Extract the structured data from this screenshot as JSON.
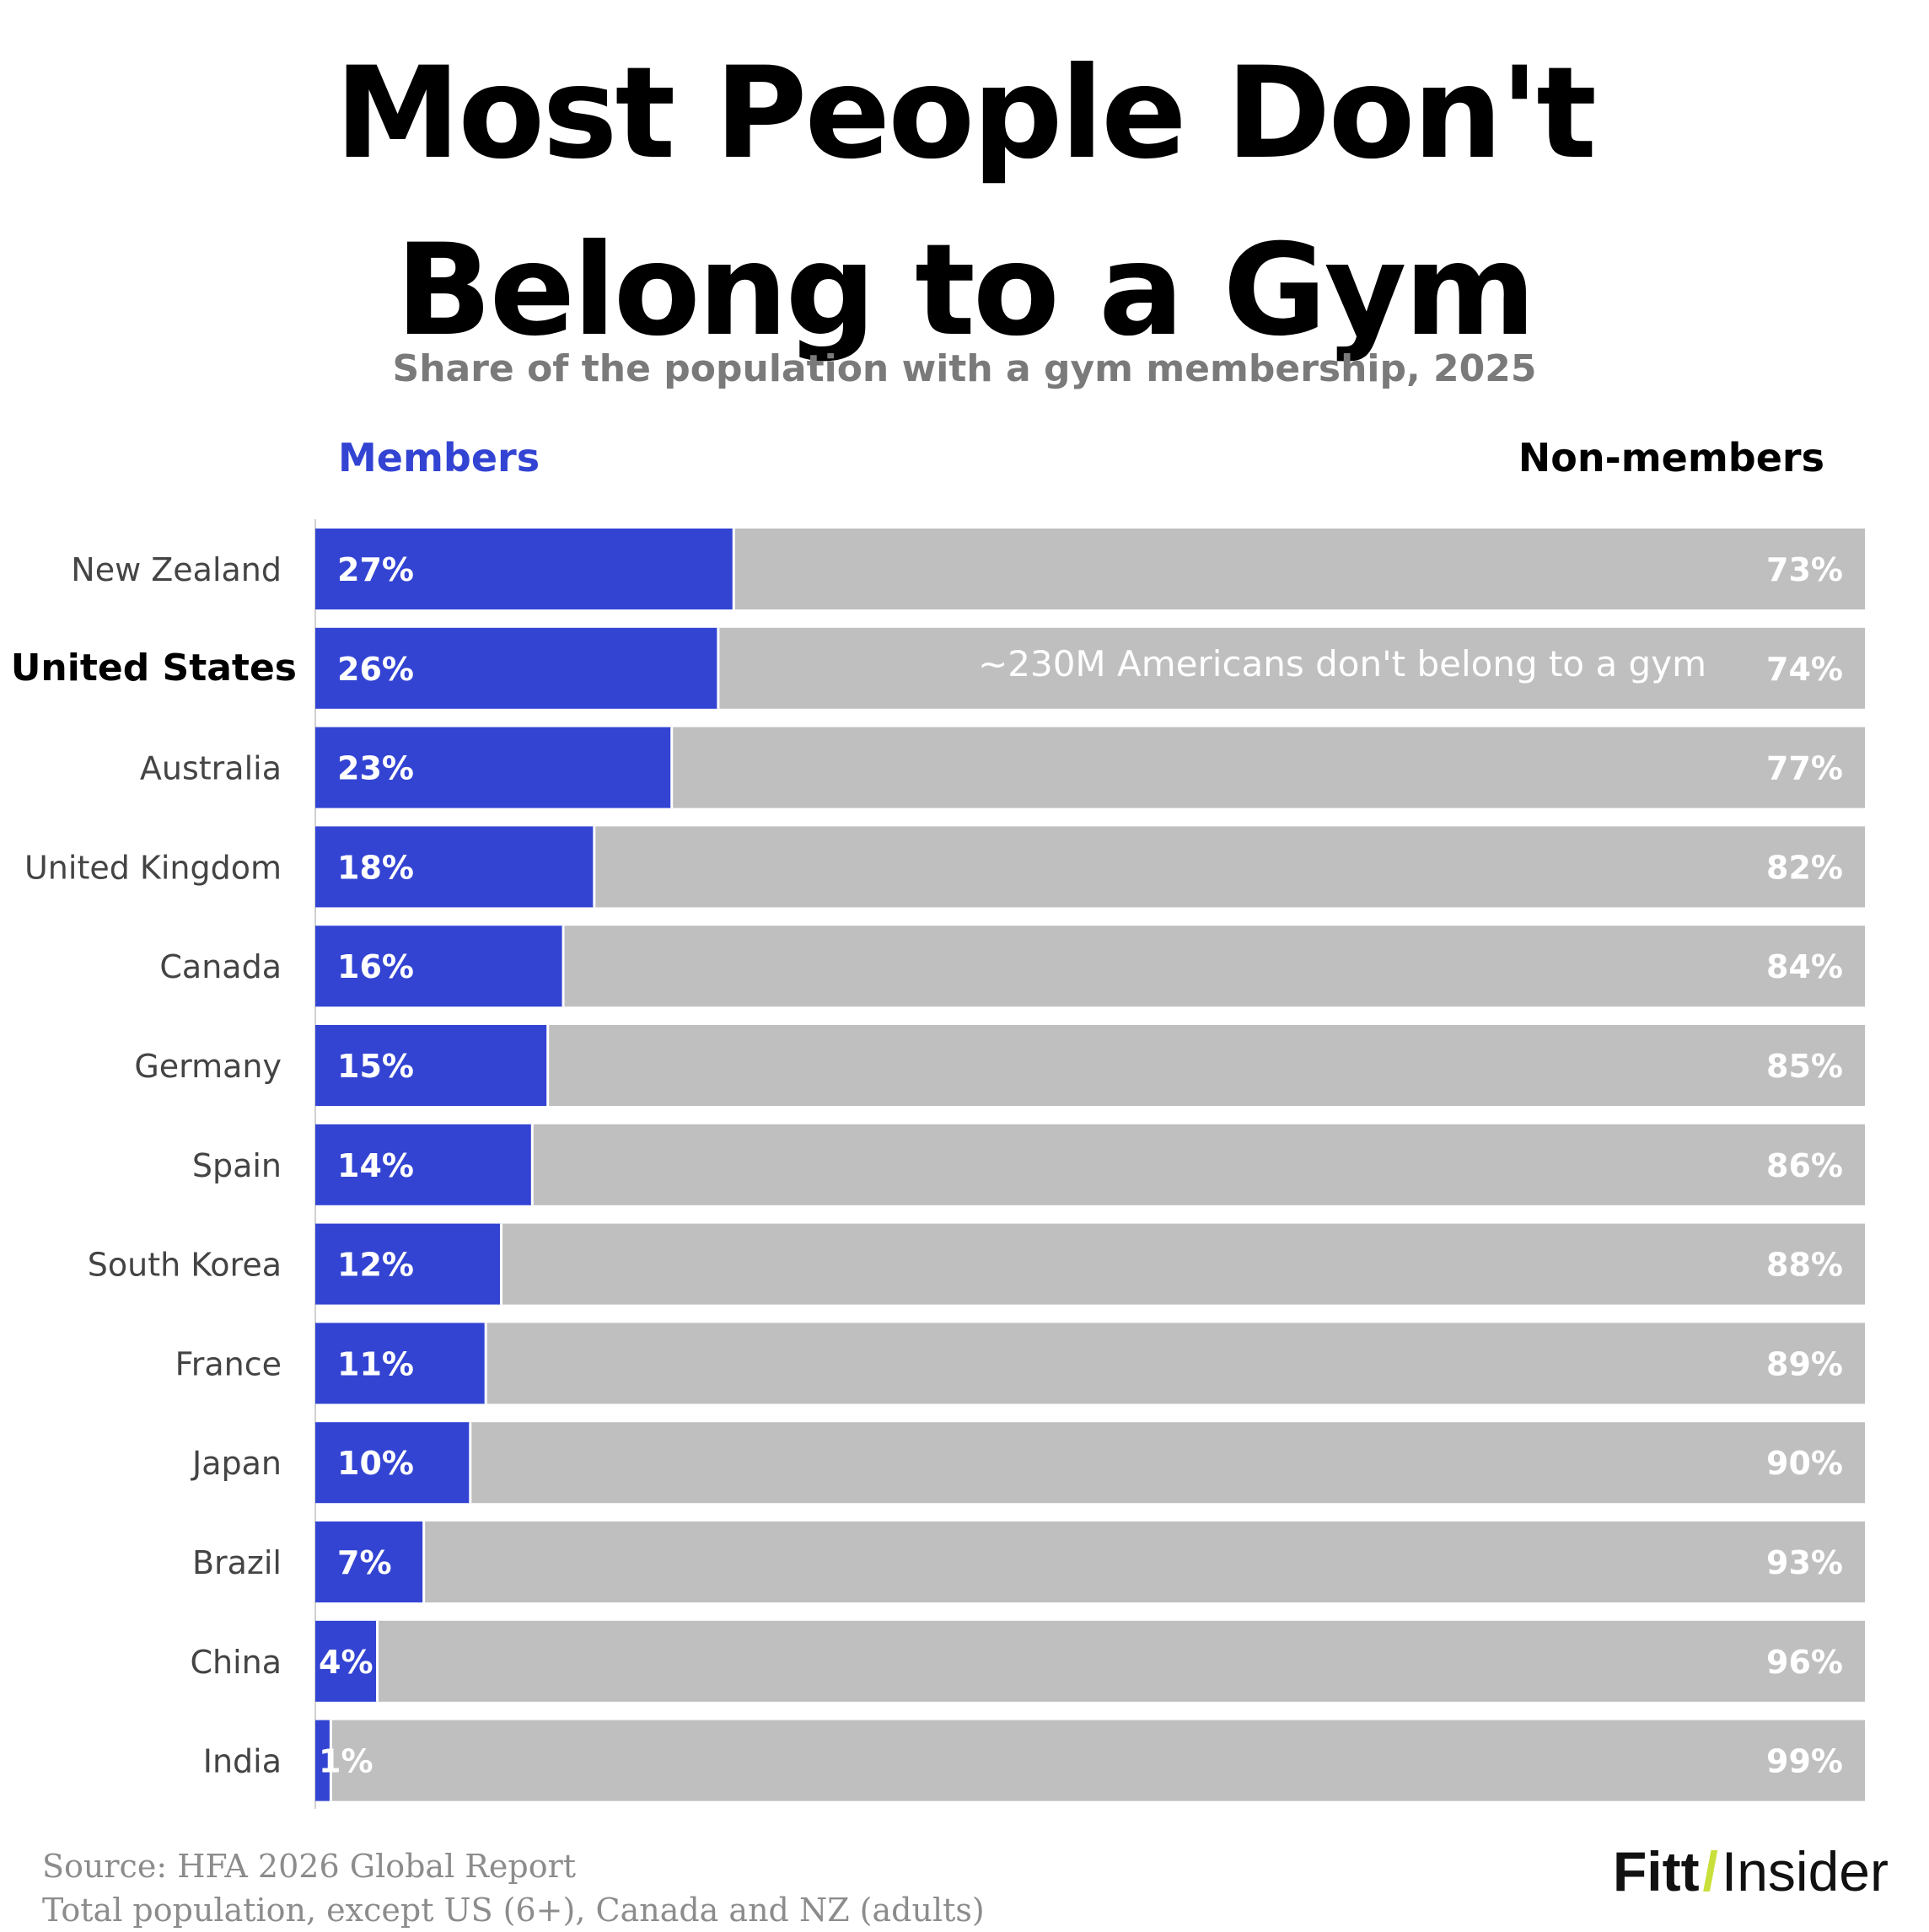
{
  "title_line1": "Most People Don't",
  "title_line2": "Belong to a Gym",
  "subtitle": "Share of the population with a gym membership, 2025",
  "members_label": "Members",
  "nonmembers_label": "Non-members",
  "annotation": "~230M Americans don't belong to a gym",
  "source_line1": "Source: HFA 2026 Global Report",
  "source_line2": "Total population, except US (6+), Canada and NZ (adults)",
  "logo": {
    "part1": "Fitt",
    "slash": "/",
    "part2": "Insider"
  },
  "colors": {
    "members": "#3344d3",
    "non_members": "#bfbfbf",
    "highlight_text": "#000000",
    "label_text": "#444444"
  },
  "chart_data": {
    "type": "bar",
    "orientation": "horizontal",
    "stacked": true,
    "xlim": [
      0,
      100
    ],
    "categories": [
      "New Zealand",
      "United States",
      "Australia",
      "United Kingdom",
      "Canada",
      "Germany",
      "Spain",
      "South Korea",
      "France",
      "Japan",
      "Brazil",
      "China",
      "India"
    ],
    "highlighted_category": "United States",
    "series": [
      {
        "name": "Members",
        "values": [
          27,
          26,
          23,
          18,
          16,
          15,
          14,
          12,
          11,
          10,
          7,
          4,
          1
        ],
        "labels": [
          "27%",
          "26%",
          "23%",
          "18%",
          "16%",
          "15%",
          "14%",
          "12%",
          "11%",
          "10%",
          "7%",
          "4%",
          "1%"
        ]
      },
      {
        "name": "Non-members",
        "values": [
          73,
          74,
          77,
          82,
          84,
          85,
          86,
          88,
          89,
          90,
          93,
          96,
          99
        ],
        "labels": [
          "73%",
          "74%",
          "77%",
          "82%",
          "84%",
          "85%",
          "86%",
          "88%",
          "89%",
          "90%",
          "93%",
          "96%",
          "99%"
        ]
      }
    ]
  }
}
